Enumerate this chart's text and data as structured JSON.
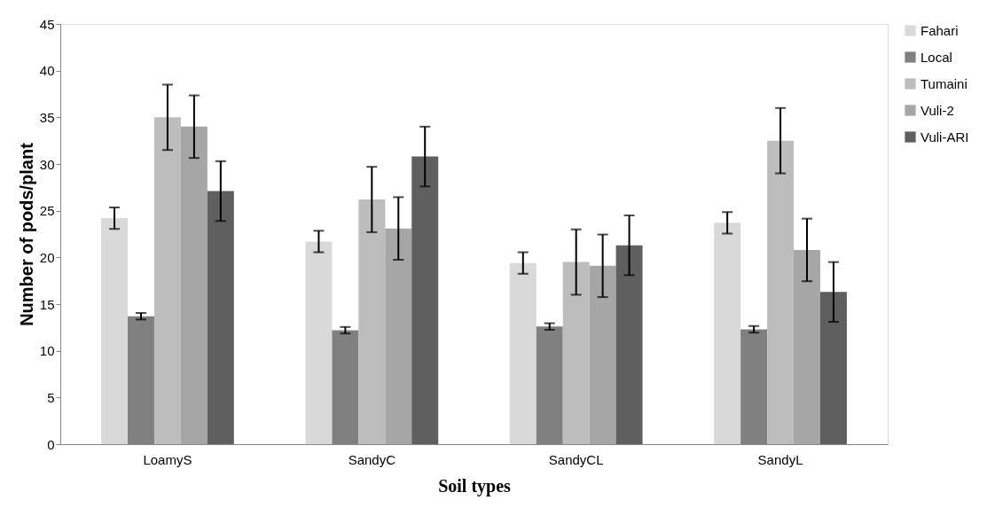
{
  "chart_data": {
    "type": "bar",
    "xlabel": "Soil types",
    "ylabel": "Number of pods/plant",
    "categories": [
      "LoamyS",
      "SandyC",
      "SandyCL",
      "SandyL"
    ],
    "series": [
      {
        "name": "Fahari",
        "color": "#d9d9d9",
        "values": [
          24.2,
          21.7,
          19.4,
          23.7
        ],
        "errors": [
          1.15,
          1.15,
          1.15,
          1.15
        ]
      },
      {
        "name": "Local",
        "color": "#808080",
        "values": [
          13.7,
          12.2,
          12.6,
          12.3
        ],
        "errors": [
          0.35,
          0.35,
          0.35,
          0.35
        ]
      },
      {
        "name": "Tumaini",
        "color": "#bdbdbd",
        "values": [
          35.0,
          26.2,
          19.5,
          32.5
        ],
        "errors": [
          3.5,
          3.5,
          3.5,
          3.5
        ]
      },
      {
        "name": "Vuli-2",
        "color": "#a6a6a6",
        "values": [
          34.0,
          23.1,
          19.1,
          20.8
        ],
        "errors": [
          3.35,
          3.35,
          3.35,
          3.35
        ]
      },
      {
        "name": "Vuli-ARI",
        "color": "#5f5f5f",
        "values": [
          27.1,
          30.8,
          21.3,
          16.3
        ],
        "errors": [
          3.2,
          3.2,
          3.2,
          3.2
        ]
      }
    ],
    "ylim": [
      0,
      45
    ],
    "yticks": [
      0,
      5,
      10,
      15,
      20,
      25,
      30,
      35,
      40,
      45
    ],
    "grid": false,
    "legend": "right"
  }
}
